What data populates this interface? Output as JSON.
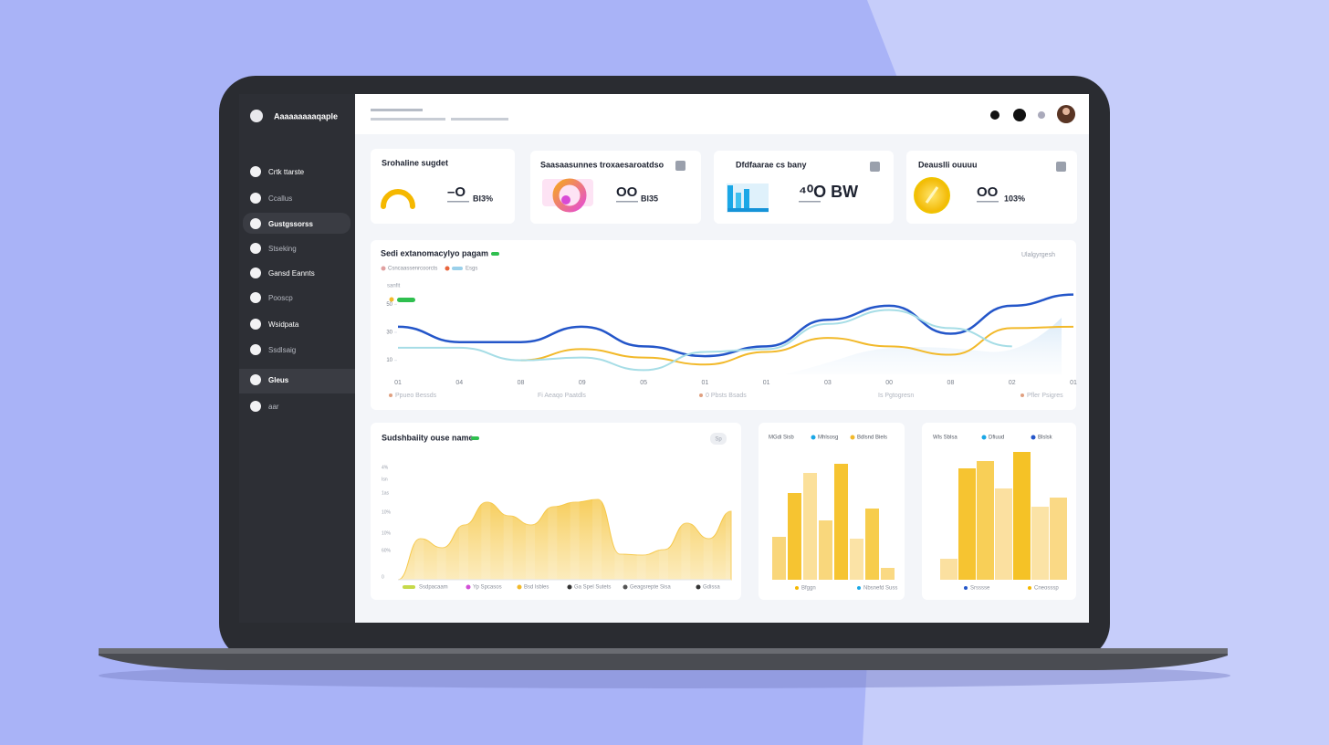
{
  "sidebar": {
    "brand": "Aaaaaaaaaqaple",
    "items": [
      "Crtk ttarste",
      "Ccallus",
      "Gustgssorss",
      "Stseking",
      "Gansd Eannts",
      "Pooscp",
      "Wsidpata",
      "Ssdlsaig",
      "Gleus",
      "aar"
    ],
    "active": [
      2,
      8
    ]
  },
  "kpis": [
    {
      "title": "Srohaline sugdet",
      "value": "–O",
      "sub": "BI3%"
    },
    {
      "title": "Saasaasunnes troxaesaroatdso",
      "value": "OO",
      "sub": "Bl35"
    },
    {
      "title": "Dfdfaarae cs bany",
      "value": "⁴⁰O BW",
      "sub": ""
    },
    {
      "title": "Deauslli ouuuu",
      "value": "OO",
      "sub": "103%"
    }
  ],
  "charts": [
    {
      "type": "line",
      "title": "Sedi extanomacylyo pagam",
      "corner_note": "Ulalgyrgesh",
      "unit_label": "sanfit",
      "legend_top": [
        "Csncaassenrcoorcts",
        "Esgs"
      ],
      "captions": [
        "Ppueo Bessds",
        "Fi Aeaqo Paatdls",
        "0 Pbsts Bsads",
        "Is Pgtogresn",
        "Pfler Psigres"
      ],
      "categories": [
        "01",
        "04",
        "08",
        "09",
        "05",
        "01",
        "01",
        "03",
        "00",
        "08",
        "02",
        "01"
      ],
      "ylim": [
        0,
        60
      ],
      "yticks": [
        10,
        30,
        50
      ],
      "series": [
        {
          "color": "#2456c9",
          "values": [
            34,
            23,
            23,
            34,
            20,
            13,
            20,
            39,
            49,
            29,
            49,
            57
          ]
        },
        {
          "color": "#f2b92a",
          "values": [
            null,
            null,
            10,
            18,
            12,
            7,
            16,
            26,
            20,
            14,
            33,
            34
          ]
        },
        {
          "color": "#a6dde6",
          "values": [
            19,
            19,
            10,
            12,
            3,
            16,
            18,
            36,
            46,
            33,
            20,
            null
          ]
        }
      ]
    },
    {
      "type": "area",
      "title": "Sudshbaiity ouse name",
      "badge": "Sp",
      "y_labels": [
        "4%",
        "Isn",
        "1as",
        "10%",
        "10%",
        "60%",
        "0"
      ],
      "legend": [
        "Ssdpacaam",
        "Yp Spcasos",
        "Bsd lsbles",
        "Ga Spel Sutets",
        "Geagsrepte Sisa",
        "Gdissa"
      ],
      "ylim": [
        0,
        100
      ],
      "color": "#f6c84a",
      "values": [
        0,
        45,
        35,
        60,
        85,
        70,
        60,
        80,
        85,
        88,
        28,
        27,
        33,
        62,
        45,
        75
      ]
    },
    {
      "type": "bar",
      "legend_top": [
        "MGdi Sisb",
        "Mhlsosg",
        "Bdlsnd Biels"
      ],
      "legend_bottom": [
        "Bfggn",
        "Nbsnefd Suss"
      ],
      "ylim": [
        0,
        150
      ],
      "values": [
        47,
        95,
        117,
        65,
        127,
        45,
        78,
        13
      ],
      "colors": [
        "#f9d67a",
        "#f6c431",
        "#fbe09a",
        "#f9d77c",
        "#f6c431",
        "#fbe3a6",
        "#f7cd4d",
        "#fad983"
      ]
    },
    {
      "type": "bar",
      "legend_top": [
        "Wls Sblsa",
        "Dfiuud",
        "Blslsk"
      ],
      "legend_bottom": [
        "Srsssse",
        "Cneosssp"
      ],
      "ylim": [
        0,
        150
      ],
      "values": [
        23,
        122,
        130,
        100,
        140,
        80,
        90
      ],
      "colors": [
        "#fbe0a0",
        "#f6c431",
        "#f8cf57",
        "#fbe0a0",
        "#f5c226",
        "#fbe3a6",
        "#fad985"
      ]
    }
  ]
}
